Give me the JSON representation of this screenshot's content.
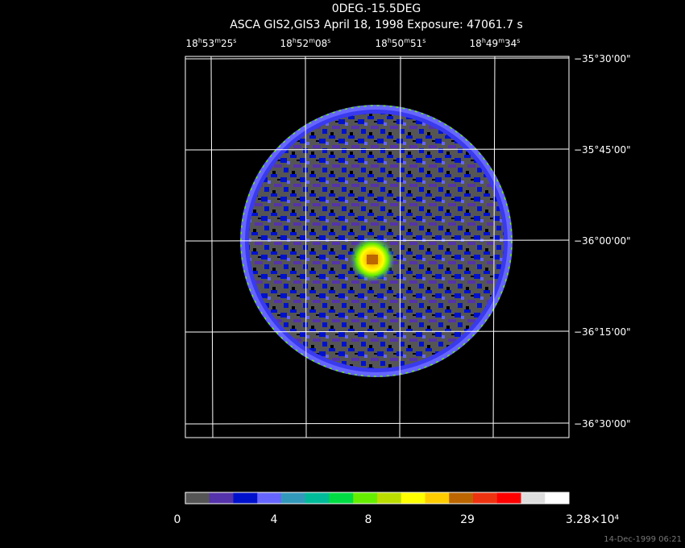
{
  "header": {
    "title": "0DEG.-15.5DEG",
    "subtitle": "ASCA GIS2,GIS3 April 18, 1998 Exposure: 47061.7 s"
  },
  "image": {
    "ra_labels": [
      "18h53m25s",
      "18h52m08s",
      "18h50m51s",
      "18h49m34s"
    ],
    "dec_labels": [
      "−35°30'00\"",
      "−35°45'00\"",
      "−36°00'00\"",
      "−36°15'00\"",
      "−36°30'00\""
    ]
  },
  "colorbar": {
    "colors": [
      "#555555",
      "#5533aa",
      "#0011cc",
      "#6666ff",
      "#3399bb",
      "#00bb99",
      "#00dd44",
      "#66ee00",
      "#bbdd00",
      "#ffff00",
      "#ffcc00",
      "#bb6600",
      "#ee3311",
      "#ff0000",
      "#dddddd",
      "#ffffff"
    ],
    "labels": [
      "0",
      "4",
      "8",
      "29",
      "3.28×10⁴"
    ]
  },
  "footer": {
    "timestamp": "14-Dec-1999 06:21"
  }
}
